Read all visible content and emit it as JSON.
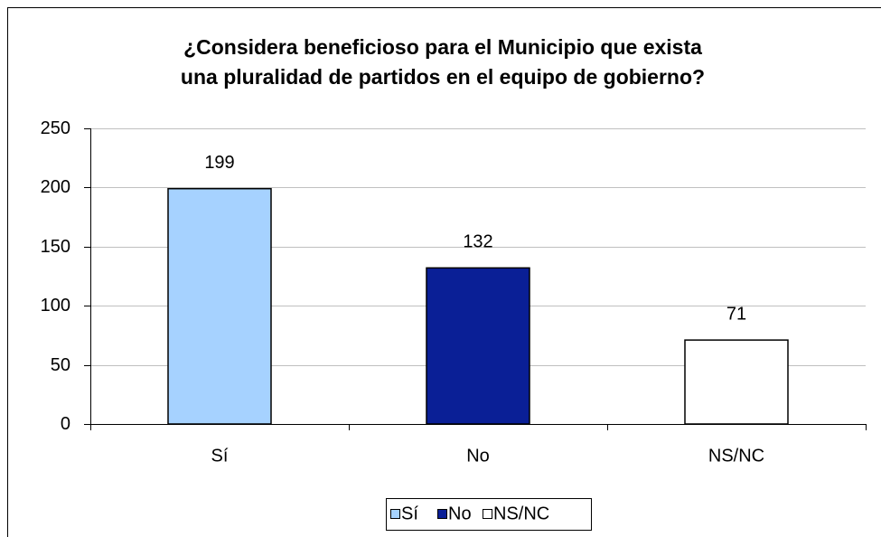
{
  "chart_data": {
    "type": "bar",
    "title": [
      "¿Considera beneficioso para el Municipio que exista",
      "una pluralidad de partidos en el equipo de gobierno?"
    ],
    "categories": [
      "Sí",
      "No",
      "NS/NC"
    ],
    "values": [
      199,
      132,
      71
    ],
    "colors": [
      "#a6d2ff",
      "#0a1f96",
      "#ffffff"
    ],
    "ylim": [
      0,
      250
    ],
    "yticks": [
      0,
      50,
      100,
      150,
      200,
      250
    ],
    "grid": true,
    "legend": "bottom"
  }
}
